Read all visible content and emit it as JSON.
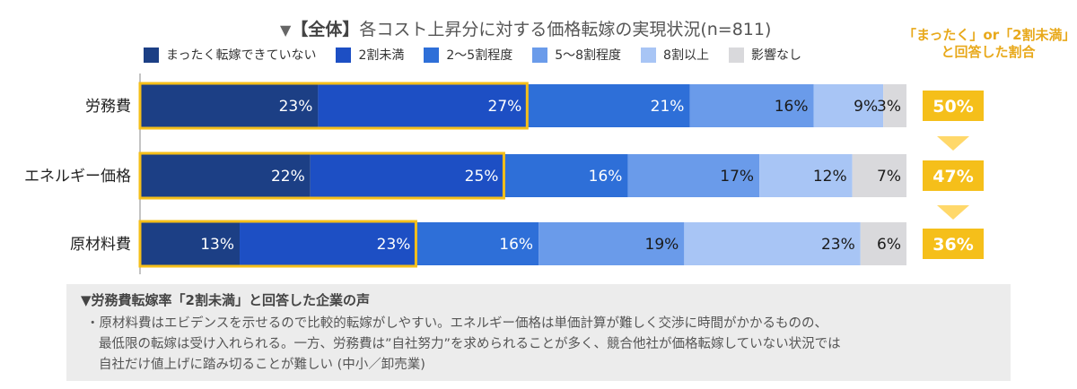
{
  "title_prefix": "▼",
  "title_tag": "【全体】",
  "title_text": "各コスト上昇分に対する価格転嫁の実現状況(n=811)",
  "callout_lines": [
    "「まったく」or「2割未満」",
    "と回答した割合"
  ],
  "colors": {
    "highlight": "#f5bf1a",
    "arrow": "#ffd86a",
    "series": [
      "#1c3f85",
      "#1d4fc4",
      "#2e6fd8",
      "#6a9bea",
      "#a8c5f5",
      "#d9d9dc"
    ]
  },
  "chart_data": {
    "type": "bar",
    "orientation": "horizontal",
    "stacked": true,
    "normalized": true,
    "title": "【全体】各コスト上昇分に対する価格転嫁の実現状況(n=811)",
    "categories": [
      "労務費",
      "エネルギー価格",
      "原材料費"
    ],
    "series": [
      {
        "name": "まったく転嫁できていない",
        "values": [
          23,
          22,
          13
        ],
        "labels": [
          "23%",
          "22%",
          "13%"
        ]
      },
      {
        "name": "2割未満",
        "values": [
          27,
          25,
          23
        ],
        "labels": [
          "27%",
          "25%",
          "23%"
        ]
      },
      {
        "name": "2～5割程度",
        "values": [
          21,
          16,
          16
        ],
        "labels": [
          "21%",
          "16%",
          "16%"
        ]
      },
      {
        "name": "5～8割程度",
        "values": [
          16,
          17,
          19
        ],
        "labels": [
          "16%",
          "17%",
          "19%"
        ]
      },
      {
        "name": "8割以上",
        "values": [
          9,
          12,
          23
        ],
        "labels": [
          "9%",
          "12%",
          "23%"
        ]
      },
      {
        "name": "影響なし",
        "values": [
          3,
          7,
          6
        ],
        "labels": [
          "3%",
          "7%",
          "6%"
        ]
      }
    ],
    "highlight_totals": [
      50,
      47,
      36
    ],
    "highlight_labels": [
      "50%",
      "47%",
      "36%"
    ],
    "xlim": [
      0,
      100
    ],
    "legend_position": "top"
  },
  "voice": {
    "heading": "▼労務費転嫁率「2割未満」と回答した企業の声",
    "lines": [
      "・原材料費はエビデンスを示せるので比較的転嫁がしやすい。エネルギー価格は単価計算が難しく交渉に時間がかかるものの、",
      "最低限の転嫁は受け入れられる。一方、労務費は”自社努力”を求められることが多く、競合他社が価格転嫁していない状況では",
      "自社だけ値上げに踏み切ることが難しい (中小／卸売業)"
    ]
  }
}
